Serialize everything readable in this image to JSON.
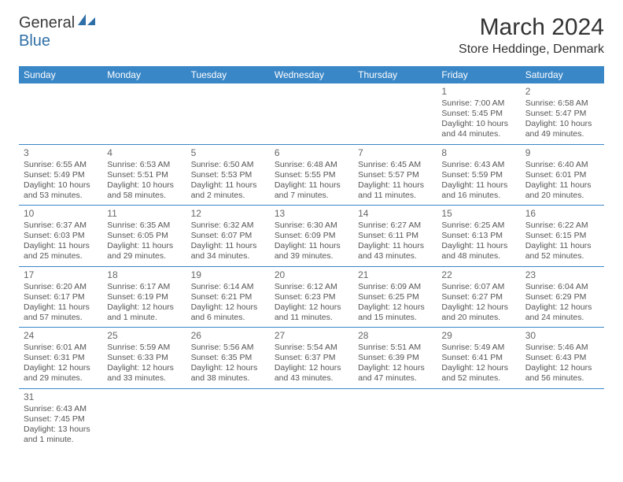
{
  "logo": {
    "line1": "General",
    "line2": "Blue"
  },
  "title": "March 2024",
  "location": "Store Heddinge, Denmark",
  "colors": {
    "header_bg": "#3a87c7",
    "header_fg": "#ffffff",
    "border": "#3a87c7"
  },
  "weekdays": [
    "Sunday",
    "Monday",
    "Tuesday",
    "Wednesday",
    "Thursday",
    "Friday",
    "Saturday"
  ],
  "weeks": [
    [
      null,
      null,
      null,
      null,
      null,
      {
        "d": "1",
        "sr": "Sunrise: 7:00 AM",
        "ss": "Sunset: 5:45 PM",
        "dl1": "Daylight: 10 hours",
        "dl2": "and 44 minutes."
      },
      {
        "d": "2",
        "sr": "Sunrise: 6:58 AM",
        "ss": "Sunset: 5:47 PM",
        "dl1": "Daylight: 10 hours",
        "dl2": "and 49 minutes."
      }
    ],
    [
      {
        "d": "3",
        "sr": "Sunrise: 6:55 AM",
        "ss": "Sunset: 5:49 PM",
        "dl1": "Daylight: 10 hours",
        "dl2": "and 53 minutes."
      },
      {
        "d": "4",
        "sr": "Sunrise: 6:53 AM",
        "ss": "Sunset: 5:51 PM",
        "dl1": "Daylight: 10 hours",
        "dl2": "and 58 minutes."
      },
      {
        "d": "5",
        "sr": "Sunrise: 6:50 AM",
        "ss": "Sunset: 5:53 PM",
        "dl1": "Daylight: 11 hours",
        "dl2": "and 2 minutes."
      },
      {
        "d": "6",
        "sr": "Sunrise: 6:48 AM",
        "ss": "Sunset: 5:55 PM",
        "dl1": "Daylight: 11 hours",
        "dl2": "and 7 minutes."
      },
      {
        "d": "7",
        "sr": "Sunrise: 6:45 AM",
        "ss": "Sunset: 5:57 PM",
        "dl1": "Daylight: 11 hours",
        "dl2": "and 11 minutes."
      },
      {
        "d": "8",
        "sr": "Sunrise: 6:43 AM",
        "ss": "Sunset: 5:59 PM",
        "dl1": "Daylight: 11 hours",
        "dl2": "and 16 minutes."
      },
      {
        "d": "9",
        "sr": "Sunrise: 6:40 AM",
        "ss": "Sunset: 6:01 PM",
        "dl1": "Daylight: 11 hours",
        "dl2": "and 20 minutes."
      }
    ],
    [
      {
        "d": "10",
        "sr": "Sunrise: 6:37 AM",
        "ss": "Sunset: 6:03 PM",
        "dl1": "Daylight: 11 hours",
        "dl2": "and 25 minutes."
      },
      {
        "d": "11",
        "sr": "Sunrise: 6:35 AM",
        "ss": "Sunset: 6:05 PM",
        "dl1": "Daylight: 11 hours",
        "dl2": "and 29 minutes."
      },
      {
        "d": "12",
        "sr": "Sunrise: 6:32 AM",
        "ss": "Sunset: 6:07 PM",
        "dl1": "Daylight: 11 hours",
        "dl2": "and 34 minutes."
      },
      {
        "d": "13",
        "sr": "Sunrise: 6:30 AM",
        "ss": "Sunset: 6:09 PM",
        "dl1": "Daylight: 11 hours",
        "dl2": "and 39 minutes."
      },
      {
        "d": "14",
        "sr": "Sunrise: 6:27 AM",
        "ss": "Sunset: 6:11 PM",
        "dl1": "Daylight: 11 hours",
        "dl2": "and 43 minutes."
      },
      {
        "d": "15",
        "sr": "Sunrise: 6:25 AM",
        "ss": "Sunset: 6:13 PM",
        "dl1": "Daylight: 11 hours",
        "dl2": "and 48 minutes."
      },
      {
        "d": "16",
        "sr": "Sunrise: 6:22 AM",
        "ss": "Sunset: 6:15 PM",
        "dl1": "Daylight: 11 hours",
        "dl2": "and 52 minutes."
      }
    ],
    [
      {
        "d": "17",
        "sr": "Sunrise: 6:20 AM",
        "ss": "Sunset: 6:17 PM",
        "dl1": "Daylight: 11 hours",
        "dl2": "and 57 minutes."
      },
      {
        "d": "18",
        "sr": "Sunrise: 6:17 AM",
        "ss": "Sunset: 6:19 PM",
        "dl1": "Daylight: 12 hours",
        "dl2": "and 1 minute."
      },
      {
        "d": "19",
        "sr": "Sunrise: 6:14 AM",
        "ss": "Sunset: 6:21 PM",
        "dl1": "Daylight: 12 hours",
        "dl2": "and 6 minutes."
      },
      {
        "d": "20",
        "sr": "Sunrise: 6:12 AM",
        "ss": "Sunset: 6:23 PM",
        "dl1": "Daylight: 12 hours",
        "dl2": "and 11 minutes."
      },
      {
        "d": "21",
        "sr": "Sunrise: 6:09 AM",
        "ss": "Sunset: 6:25 PM",
        "dl1": "Daylight: 12 hours",
        "dl2": "and 15 minutes."
      },
      {
        "d": "22",
        "sr": "Sunrise: 6:07 AM",
        "ss": "Sunset: 6:27 PM",
        "dl1": "Daylight: 12 hours",
        "dl2": "and 20 minutes."
      },
      {
        "d": "23",
        "sr": "Sunrise: 6:04 AM",
        "ss": "Sunset: 6:29 PM",
        "dl1": "Daylight: 12 hours",
        "dl2": "and 24 minutes."
      }
    ],
    [
      {
        "d": "24",
        "sr": "Sunrise: 6:01 AM",
        "ss": "Sunset: 6:31 PM",
        "dl1": "Daylight: 12 hours",
        "dl2": "and 29 minutes."
      },
      {
        "d": "25",
        "sr": "Sunrise: 5:59 AM",
        "ss": "Sunset: 6:33 PM",
        "dl1": "Daylight: 12 hours",
        "dl2": "and 33 minutes."
      },
      {
        "d": "26",
        "sr": "Sunrise: 5:56 AM",
        "ss": "Sunset: 6:35 PM",
        "dl1": "Daylight: 12 hours",
        "dl2": "and 38 minutes."
      },
      {
        "d": "27",
        "sr": "Sunrise: 5:54 AM",
        "ss": "Sunset: 6:37 PM",
        "dl1": "Daylight: 12 hours",
        "dl2": "and 43 minutes."
      },
      {
        "d": "28",
        "sr": "Sunrise: 5:51 AM",
        "ss": "Sunset: 6:39 PM",
        "dl1": "Daylight: 12 hours",
        "dl2": "and 47 minutes."
      },
      {
        "d": "29",
        "sr": "Sunrise: 5:49 AM",
        "ss": "Sunset: 6:41 PM",
        "dl1": "Daylight: 12 hours",
        "dl2": "and 52 minutes."
      },
      {
        "d": "30",
        "sr": "Sunrise: 5:46 AM",
        "ss": "Sunset: 6:43 PM",
        "dl1": "Daylight: 12 hours",
        "dl2": "and 56 minutes."
      }
    ],
    [
      {
        "d": "31",
        "sr": "Sunrise: 6:43 AM",
        "ss": "Sunset: 7:45 PM",
        "dl1": "Daylight: 13 hours",
        "dl2": "and 1 minute."
      },
      null,
      null,
      null,
      null,
      null,
      null
    ]
  ]
}
